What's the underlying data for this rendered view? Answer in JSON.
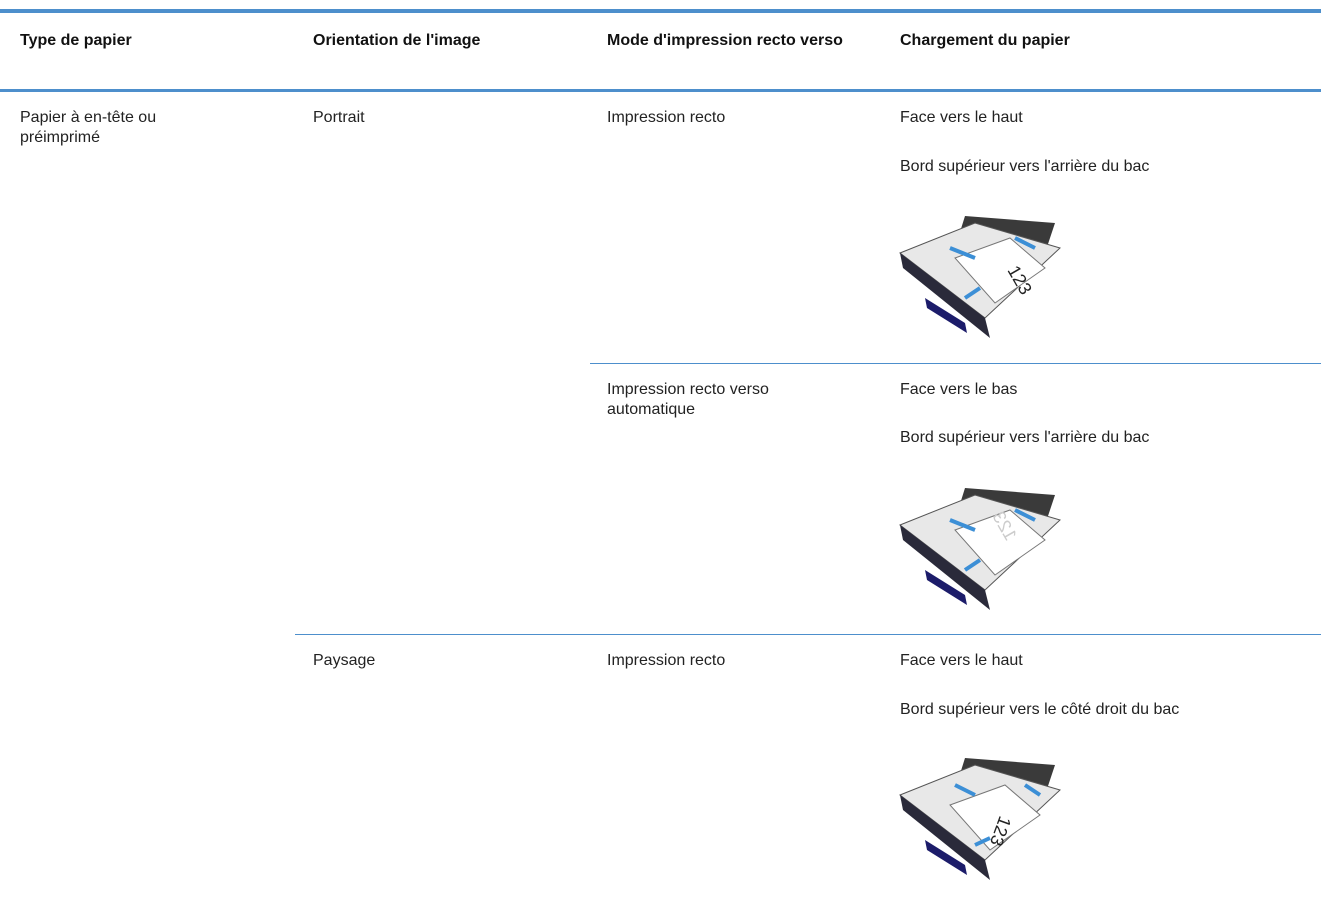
{
  "table": {
    "headers": [
      "Type de papier",
      "Orientation de l'image",
      "Mode d'impression recto verso",
      "Chargement du papier"
    ],
    "rows": [
      {
        "paper_type": "Papier à en-tête ou préimprimé",
        "orientation": "Portrait",
        "mode": "Impression recto",
        "loading": [
          "Face vers le haut",
          "Bord supérieur vers l'arrière du bac"
        ],
        "figure_text": "123"
      },
      {
        "mode": "Impression recto verso automatique",
        "loading": [
          "Face vers le bas",
          "Bord supérieur vers l'arrière du bac"
        ],
        "figure_text": "123"
      },
      {
        "orientation": "Paysage",
        "mode": "Impression recto",
        "loading": [
          "Face vers le haut",
          "Bord supérieur vers le côté droit du bac"
        ],
        "figure_text": "123"
      }
    ]
  }
}
